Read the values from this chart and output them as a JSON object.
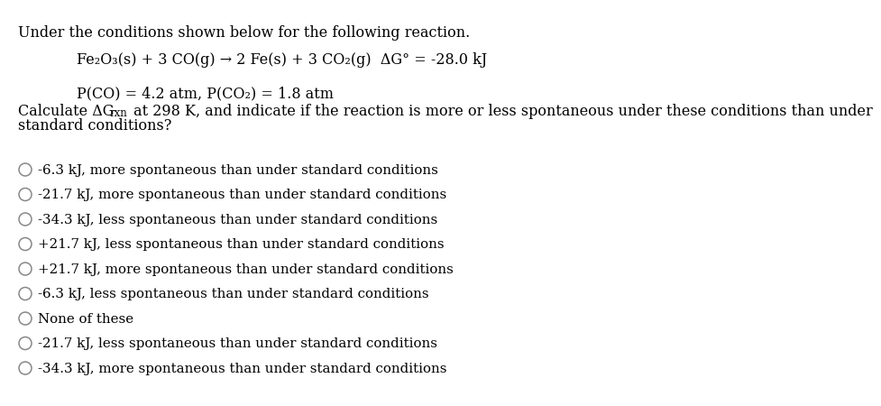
{
  "bg_color": "#ffffff",
  "header_line": "Under the conditions shown below for the following reaction.",
  "reaction_line": "Fe₂O₃(s) + 3 CO(g) → 2 Fe(s) + 3 CO₂(g)  ΔG° = -28.0 kJ",
  "conditions_line": "P(CO) = 4.2 atm, P(CO₂) = 1.8 atm",
  "calc_pre": "Calculate ΔG",
  "calc_sub": "rxn",
  "calc_post": " at 298 K, and indicate if the reaction is more or less spontaneous under these conditions than under",
  "question_line2": "standard conditions?",
  "choices": [
    "-6.3 kJ, more spontaneous than under standard conditions",
    "-21.7 kJ, more spontaneous than under standard conditions",
    "-34.3 kJ, less spontaneous than under standard conditions",
    "+21.7 kJ, less spontaneous than under standard conditions",
    "+21.7 kJ, more spontaneous than under standard conditions",
    "-6.3 kJ, less spontaneous than under standard conditions",
    "None of these",
    "-21.7 kJ, less spontaneous than under standard conditions",
    "-34.3 kJ, more spontaneous than under standard conditions"
  ],
  "text_color": "#000000",
  "circle_color": "#888888"
}
